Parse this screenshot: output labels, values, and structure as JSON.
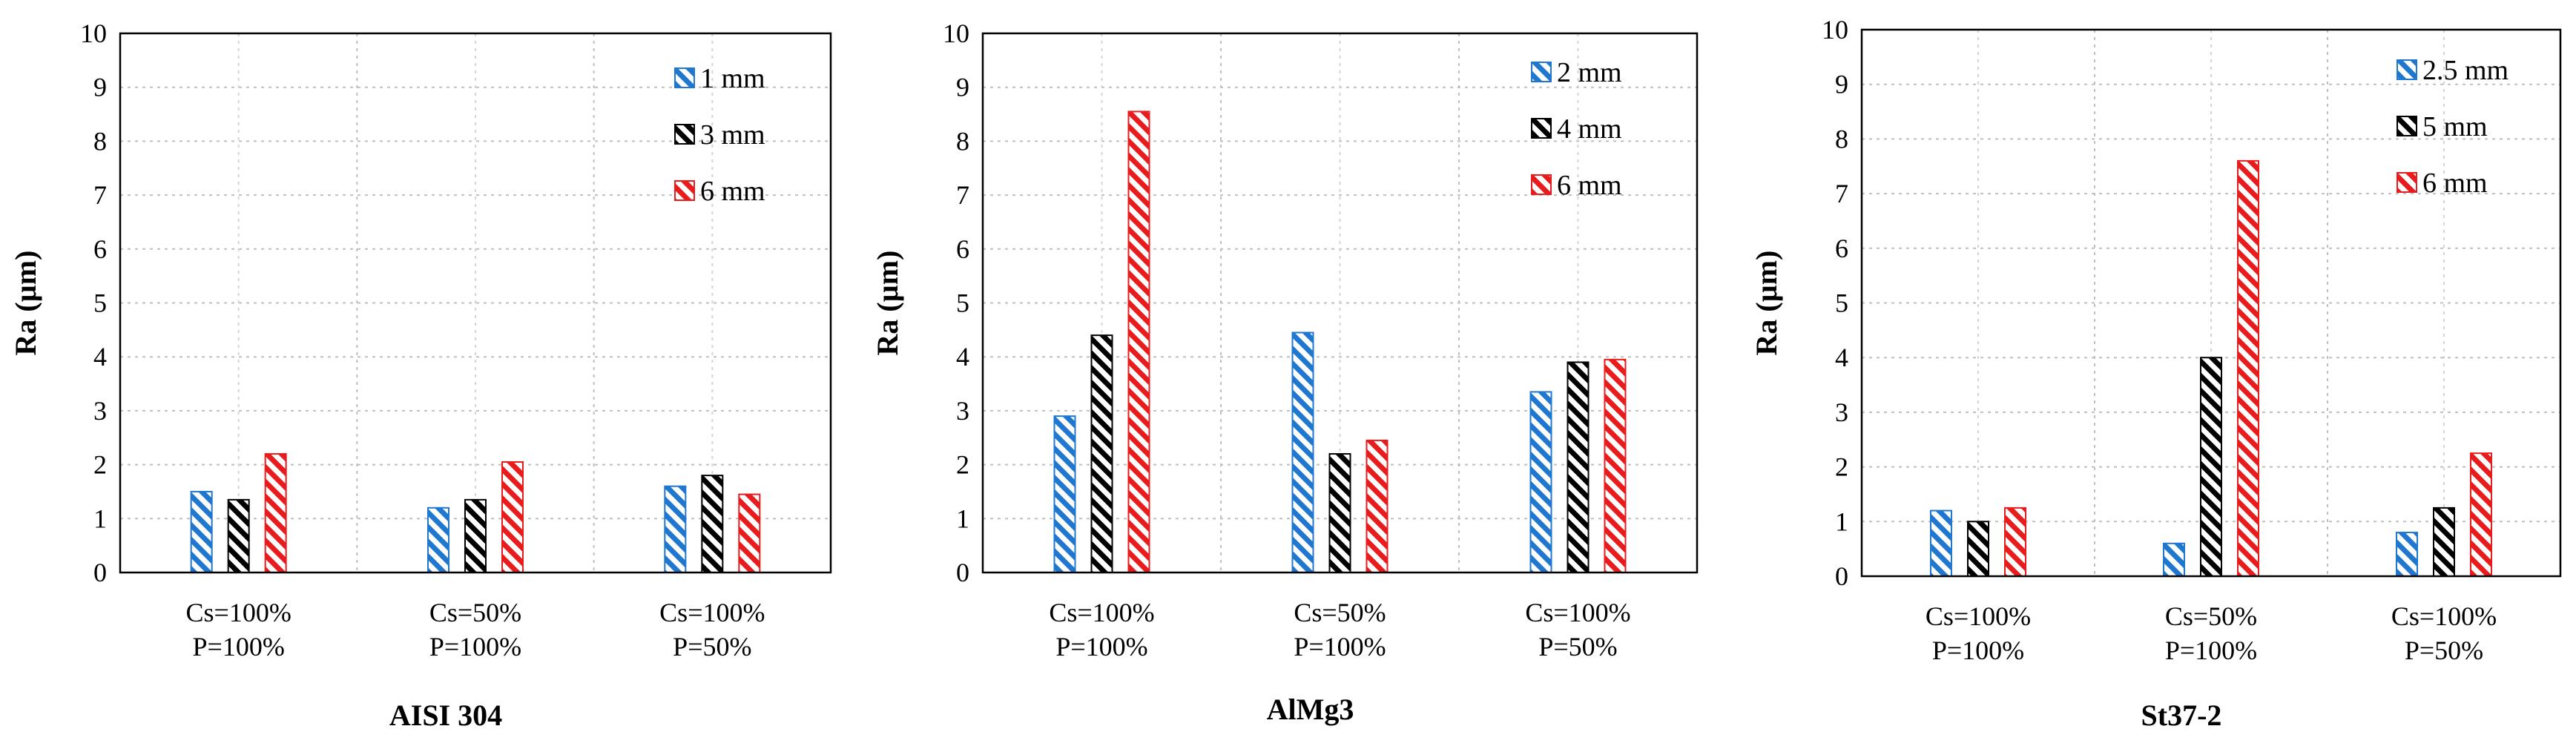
{
  "chart_data": [
    {
      "type": "bar",
      "title": "AISI 304",
      "xlabel": "",
      "ylabel": "Ra (µm)",
      "ylim": [
        0,
        10
      ],
      "yticks": [
        "0",
        "1",
        "2",
        "3",
        "4",
        "5",
        "6",
        "7",
        "8",
        "9",
        "10"
      ],
      "categories": [
        [
          "Cs=100%",
          "P=100%"
        ],
        [
          "Cs=50%",
          "P=100%"
        ],
        [
          "Cs=100%",
          "P=50%"
        ]
      ],
      "series": [
        {
          "name": "1 mm",
          "color": "#1f77d0",
          "values": [
            1.5,
            1.2,
            1.6
          ]
        },
        {
          "name": "3 mm",
          "color": "#000000",
          "values": [
            1.35,
            1.35,
            1.8
          ]
        },
        {
          "name": "6 mm",
          "color": "#e81c1c",
          "values": [
            2.2,
            2.05,
            1.45
          ]
        }
      ],
      "grid": true,
      "legend": "top-right"
    },
    {
      "type": "bar",
      "title": "AlMg3",
      "xlabel": "",
      "ylabel": "Ra (µm)",
      "ylim": [
        0,
        10
      ],
      "yticks": [
        "0",
        "1",
        "2",
        "3",
        "4",
        "5",
        "6",
        "7",
        "8",
        "9",
        "10"
      ],
      "categories": [
        [
          "Cs=100%",
          "P=100%"
        ],
        [
          "Cs=50%",
          "P=100%"
        ],
        [
          "Cs=100%",
          "P=50%"
        ]
      ],
      "series": [
        {
          "name": "2 mm",
          "color": "#1f77d0",
          "values": [
            2.9,
            4.45,
            3.35
          ]
        },
        {
          "name": "4 mm",
          "color": "#000000",
          "values": [
            4.4,
            2.2,
            3.9
          ]
        },
        {
          "name": "6 mm",
          "color": "#e81c1c",
          "values": [
            8.55,
            2.45,
            3.95
          ]
        }
      ],
      "grid": true,
      "legend": "top-right"
    },
    {
      "type": "bar",
      "title": "St37-2",
      "xlabel": "",
      "ylabel": "Ra (µm)",
      "ylim": [
        0,
        10
      ],
      "yticks": [
        "0",
        "1",
        "2",
        "3",
        "4",
        "5",
        "6",
        "7",
        "8",
        "9",
        "10"
      ],
      "categories": [
        [
          "Cs=100%",
          "P=100%"
        ],
        [
          "Cs=50%",
          "P=100%"
        ],
        [
          "Cs=100%",
          "P=50%"
        ]
      ],
      "series": [
        {
          "name": "2.5 mm",
          "color": "#1f77d0",
          "values": [
            1.2,
            0.6,
            0.8
          ]
        },
        {
          "name": "5 mm",
          "color": "#000000",
          "values": [
            1.0,
            4.0,
            1.25
          ]
        },
        {
          "name": "6 mm",
          "color": "#e81c1c",
          "values": [
            1.25,
            7.6,
            2.25
          ]
        }
      ],
      "grid": true,
      "legend": "top-right"
    }
  ]
}
